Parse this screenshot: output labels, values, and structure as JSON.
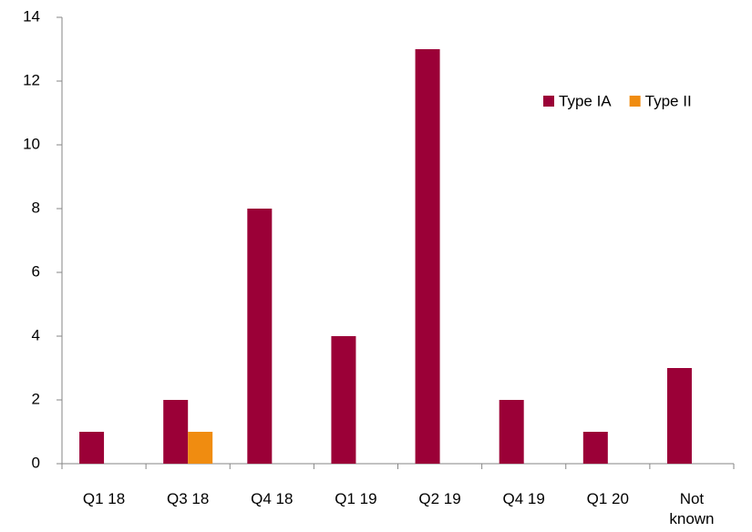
{
  "chart_data": {
    "type": "bar",
    "categories": [
      "Q1 18",
      "Q3 18",
      "Q4 18",
      "Q1 19",
      "Q2 19",
      "Q4 19",
      "Q1 20",
      "Not known"
    ],
    "series": [
      {
        "name": "Type IA",
        "color": "#9b0037",
        "values": [
          1,
          2,
          8,
          4,
          13,
          2,
          1,
          3
        ]
      },
      {
        "name": "Type II",
        "color": "#f08c10",
        "values": [
          0,
          1,
          0,
          0,
          0,
          0,
          0,
          0
        ]
      }
    ],
    "ylim": [
      0,
      14
    ],
    "yticks": [
      0,
      2,
      4,
      6,
      8,
      10,
      12,
      14
    ],
    "grid": false,
    "legend": "top-right"
  }
}
